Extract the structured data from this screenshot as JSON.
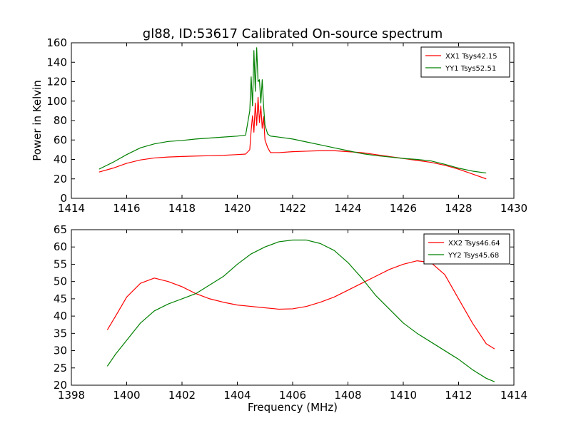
{
  "title": "gl88, ID:53617 Calibrated On-source spectrum",
  "chart_data": [
    {
      "type": "line",
      "xlabel": "",
      "ylabel": "Power in Kelvin",
      "xlim": [
        1414,
        1430
      ],
      "ylim": [
        0,
        160
      ],
      "xticks": [
        1414,
        1416,
        1418,
        1420,
        1422,
        1424,
        1426,
        1428,
        1430
      ],
      "yticks": [
        0,
        20,
        40,
        60,
        80,
        100,
        120,
        140,
        160
      ],
      "legend": "top-right",
      "series": [
        {
          "name": "XX1 Tsys42.15",
          "color": "#ff0000",
          "x": [
            1415,
            1415.5,
            1416,
            1416.5,
            1417,
            1417.5,
            1418,
            1418.5,
            1419,
            1419.5,
            1420,
            1420.3,
            1420.45,
            1420.5,
            1420.55,
            1420.6,
            1420.65,
            1420.7,
            1420.75,
            1420.8,
            1420.85,
            1420.9,
            1420.95,
            1421.0,
            1421.1,
            1421.2,
            1421.5,
            1422,
            1422.5,
            1423,
            1423.5,
            1424,
            1424.5,
            1425,
            1425.5,
            1426,
            1426.5,
            1427,
            1427.5,
            1428,
            1428.5,
            1429
          ],
          "values": [
            27,
            31,
            36,
            39.5,
            41.5,
            42.5,
            43,
            43.5,
            43.8,
            44.2,
            45,
            45.5,
            50,
            70,
            85,
            68,
            98,
            75,
            104,
            78,
            95,
            72,
            84,
            60,
            52,
            47,
            47,
            48,
            48.5,
            49,
            49,
            48,
            47,
            45,
            43,
            41,
            39,
            37,
            34,
            30,
            25,
            20
          ]
        },
        {
          "name": "YY1 Tsys52.51",
          "color": "#008000",
          "x": [
            1415,
            1415.5,
            1416,
            1416.5,
            1417,
            1417.5,
            1418,
            1418.5,
            1419,
            1419.5,
            1420,
            1420.3,
            1420.45,
            1420.5,
            1420.55,
            1420.6,
            1420.65,
            1420.7,
            1420.75,
            1420.8,
            1420.85,
            1420.9,
            1420.95,
            1421.0,
            1421.1,
            1421.2,
            1421.5,
            1422,
            1422.5,
            1423,
            1423.5,
            1424,
            1424.5,
            1425,
            1425.5,
            1426,
            1426.5,
            1427,
            1427.5,
            1428,
            1428.5,
            1429
          ],
          "values": [
            30,
            37,
            45,
            52,
            56,
            58.5,
            59.5,
            61,
            62,
            63,
            64,
            65,
            90,
            125,
            95,
            152,
            110,
            155,
            120,
            122,
            98,
            122,
            95,
            75,
            66,
            64,
            63,
            61,
            58,
            55,
            52,
            49,
            46,
            44,
            42.5,
            41,
            40,
            38.5,
            35,
            31,
            28,
            26
          ]
        }
      ]
    },
    {
      "type": "line",
      "xlabel": "Frequency (MHz)",
      "ylabel": "",
      "xlim": [
        1398,
        1414
      ],
      "ylim": [
        20,
        65
      ],
      "xticks": [
        1398,
        1400,
        1402,
        1404,
        1406,
        1408,
        1410,
        1412,
        1414
      ],
      "yticks": [
        20,
        25,
        30,
        35,
        40,
        45,
        50,
        55,
        60,
        65
      ],
      "legend": "top-right",
      "series": [
        {
          "name": "XX2 Tsys46.64",
          "color": "#ff0000",
          "x": [
            1399.3,
            1399.6,
            1400,
            1400.5,
            1401,
            1401.5,
            1402,
            1402.5,
            1403,
            1403.5,
            1404,
            1404.5,
            1405,
            1405.5,
            1406,
            1406.5,
            1407,
            1407.5,
            1408,
            1408.5,
            1409,
            1409.5,
            1410,
            1410.5,
            1411,
            1411.5,
            1412,
            1412.5,
            1413,
            1413.3
          ],
          "values": [
            36,
            40,
            45.5,
            49.5,
            51,
            50,
            48.5,
            46.5,
            45,
            44,
            43.2,
            42.8,
            42.4,
            42,
            42.1,
            42.8,
            44,
            45.5,
            47.5,
            49.5,
            51.5,
            53.5,
            55,
            56,
            55.5,
            52,
            45,
            38,
            32,
            30.5
          ]
        },
        {
          "name": "YY2 Tsys45.68",
          "color": "#008000",
          "x": [
            1399.3,
            1399.6,
            1400,
            1400.5,
            1401,
            1401.5,
            1402,
            1402.5,
            1403,
            1403.5,
            1404,
            1404.5,
            1405,
            1405.5,
            1406,
            1406.5,
            1407,
            1407.5,
            1408,
            1408.5,
            1409,
            1409.5,
            1410,
            1410.5,
            1411,
            1411.5,
            1412,
            1412.5,
            1413,
            1413.3
          ],
          "values": [
            25.5,
            29,
            33,
            38,
            41.5,
            43.5,
            45,
            46.5,
            49,
            51.5,
            55,
            58,
            60,
            61.5,
            62,
            62,
            61,
            59,
            55.5,
            51,
            46,
            42,
            38,
            35,
            32.5,
            30,
            27.5,
            24.5,
            22,
            21
          ]
        }
      ]
    }
  ]
}
